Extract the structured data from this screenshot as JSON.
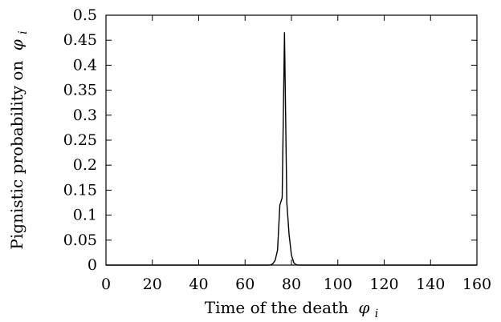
{
  "chart_data": {
    "type": "line",
    "title": "",
    "xlabel": "Time of the death",
    "xlabel_symbol": "φ",
    "xlabel_subscript": "i",
    "ylabel": "Pignistic probability on",
    "ylabel_symbol": "φ",
    "ylabel_subscript": "i",
    "xlim": [
      0,
      160
    ],
    "ylim": [
      0,
      0.5
    ],
    "x_ticks": [
      0,
      20,
      40,
      60,
      80,
      100,
      120,
      140,
      160
    ],
    "y_ticks": [
      0,
      0.05,
      0.1,
      0.15,
      0.2,
      0.25,
      0.3,
      0.35,
      0.4,
      0.45,
      0.5
    ],
    "x_tick_labels": [
      "0",
      "20",
      "40",
      "60",
      "80",
      "100",
      "120",
      "140",
      "160"
    ],
    "y_tick_labels": [
      "0",
      "0.05",
      "0.1",
      "0.15",
      "0.2",
      "0.25",
      "0.3",
      "0.35",
      "0.4",
      "0.45",
      "0.5"
    ],
    "grid": false,
    "series": [
      {
        "color": "#000000",
        "x": [
          0,
          70,
          71,
          72,
          73,
          74,
          75,
          76,
          77,
          78,
          79,
          80,
          81,
          82,
          83,
          84,
          160
        ],
        "y": [
          0,
          0,
          0.0005,
          0.003,
          0.01,
          0.03,
          0.12,
          0.135,
          0.465,
          0.125,
          0.06,
          0.02,
          0.005,
          0.001,
          0.0002,
          0,
          0
        ]
      }
    ]
  }
}
